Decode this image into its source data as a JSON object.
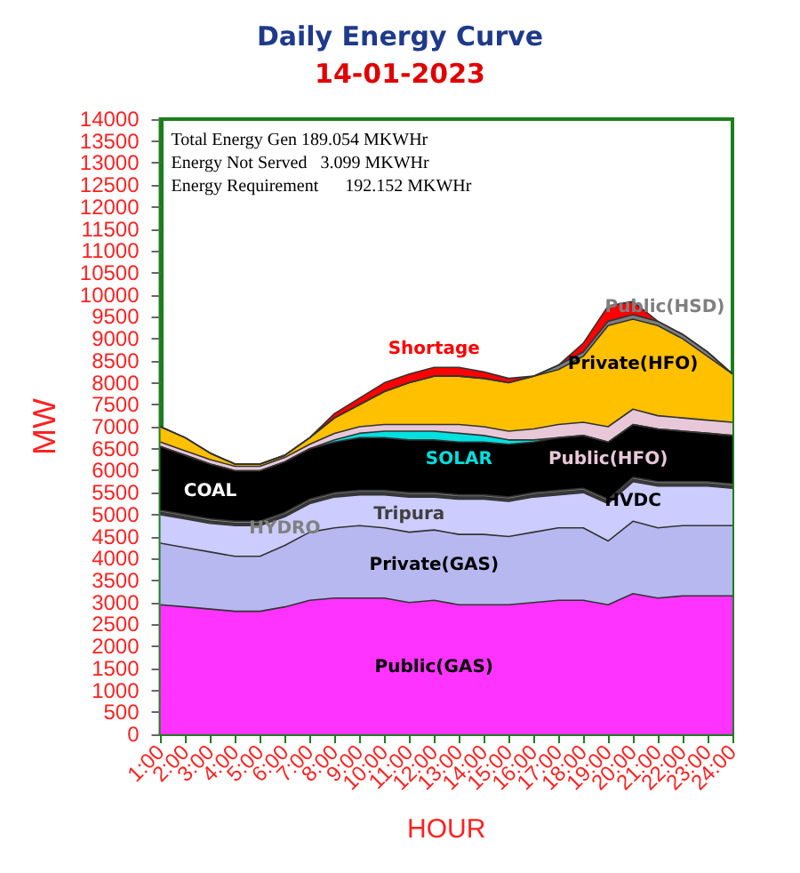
{
  "chart_data": {
    "type": "area",
    "stacked": true,
    "title": "Daily Energy Curve",
    "subtitle": "14-01-2023",
    "xlabel": "HOUR",
    "ylabel": "MW",
    "annotations": [
      "Total Energy Gen 189.054 MKWHr",
      "Energy Not Served   3.099 MKWHr",
      "Energy Requirement      192.152 MKWHr"
    ],
    "categories": [
      "1:00",
      "2:00",
      "3:00",
      "4:00",
      "5:00",
      "6:00",
      "7:00",
      "8:00",
      "9:00",
      "10:00",
      "11:00",
      "12:00",
      "13:00",
      "14:00",
      "15:00",
      "16:00",
      "17:00",
      "18:00",
      "19:00",
      "20:00",
      "21:00",
      "22:00",
      "23:00",
      "24:00"
    ],
    "ylim": [
      0,
      14000
    ],
    "yticks": [
      0,
      500,
      1000,
      1500,
      2000,
      2500,
      3000,
      3500,
      4000,
      4500,
      5000,
      5500,
      6000,
      6500,
      7000,
      7500,
      8000,
      8500,
      9000,
      9500,
      10000,
      10500,
      11000,
      11500,
      12000,
      12500,
      13000,
      13500,
      14000
    ],
    "grid": false,
    "legend": false,
    "series": [
      {
        "name": "Public(GAS)",
        "color": "#ff33ff",
        "values": [
          2950,
          2900,
          2850,
          2800,
          2800,
          2900,
          3050,
          3100,
          3100,
          3100,
          3000,
          3050,
          2950,
          2950,
          2950,
          3000,
          3050,
          3050,
          2950,
          3200,
          3100,
          3150,
          3150,
          3150
        ]
      },
      {
        "name": "Private(GAS)",
        "color": "#b8b8f0",
        "values": [
          1400,
          1350,
          1300,
          1250,
          1250,
          1400,
          1550,
          1600,
          1650,
          1600,
          1600,
          1600,
          1600,
          1600,
          1550,
          1600,
          1650,
          1650,
          1450,
          1650,
          1600,
          1600,
          1600,
          1600
        ]
      },
      {
        "name": "HVDC",
        "color": "#ccccff",
        "values": [
          650,
          650,
          650,
          700,
          700,
          650,
          650,
          700,
          700,
          750,
          800,
          750,
          800,
          800,
          800,
          800,
          750,
          800,
          850,
          900,
          950,
          900,
          900,
          850
        ]
      },
      {
        "name": "Tripura",
        "color": "#404040",
        "values": [
          50,
          50,
          50,
          50,
          50,
          50,
          50,
          50,
          50,
          50,
          50,
          50,
          50,
          50,
          50,
          50,
          50,
          50,
          50,
          50,
          50,
          50,
          50,
          50
        ]
      },
      {
        "name": "HYDRO",
        "color": "#808080",
        "values": [
          50,
          50,
          50,
          50,
          50,
          50,
          50,
          50,
          50,
          50,
          50,
          50,
          50,
          50,
          50,
          50,
          50,
          50,
          50,
          50,
          50,
          50,
          50,
          50
        ]
      },
      {
        "name": "COAL",
        "color": "#000000",
        "values": [
          1450,
          1350,
          1250,
          1150,
          1150,
          1150,
          1150,
          1150,
          1200,
          1200,
          1200,
          1200,
          1200,
          1200,
          1200,
          1150,
          1200,
          1200,
          1300,
          1200,
          1200,
          1150,
          1100,
          1100
        ]
      },
      {
        "name": "SOLAR",
        "color": "#00e0e0",
        "values": [
          0,
          0,
          0,
          0,
          0,
          0,
          0,
          50,
          100,
          150,
          200,
          200,
          200,
          150,
          100,
          50,
          0,
          0,
          0,
          0,
          0,
          0,
          0,
          0
        ]
      },
      {
        "name": "Public(HFO)",
        "color": "#e8c8d8",
        "values": [
          100,
          100,
          100,
          100,
          100,
          100,
          100,
          150,
          150,
          150,
          150,
          150,
          200,
          200,
          200,
          250,
          300,
          300,
          350,
          350,
          300,
          300,
          300,
          300
        ]
      },
      {
        "name": "Private(HFO)",
        "color": "#ffc000",
        "values": [
          350,
          300,
          150,
          50,
          50,
          50,
          150,
          350,
          500,
          750,
          950,
          1100,
          1100,
          1100,
          1100,
          1200,
          1250,
          1500,
          2300,
          2050,
          2050,
          1800,
          1450,
          1100
        ]
      },
      {
        "name": "Public(HSD)",
        "color": "#7f7f7f",
        "values": [
          0,
          0,
          0,
          0,
          0,
          0,
          0,
          0,
          0,
          0,
          0,
          0,
          0,
          0,
          0,
          0,
          100,
          100,
          100,
          100,
          100,
          100,
          100,
          0
        ]
      },
      {
        "name": "Shortage",
        "color": "#ff0000",
        "values": [
          0,
          0,
          0,
          0,
          0,
          0,
          0,
          100,
          150,
          200,
          200,
          200,
          200,
          150,
          100,
          0,
          0,
          200,
          350,
          300,
          0,
          0,
          0,
          0
        ]
      }
    ]
  }
}
